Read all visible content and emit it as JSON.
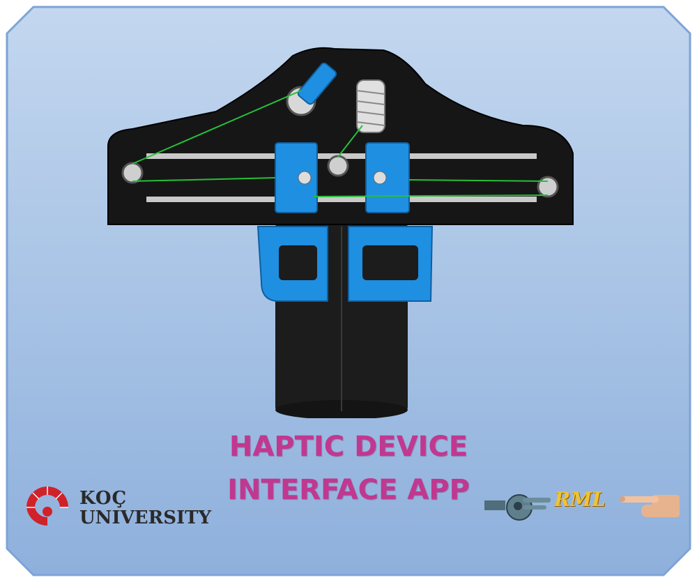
{
  "splash": {
    "title_line_1": "HAPTIC DEVICE",
    "title_line_2": "INTERFACE APP"
  },
  "logos": {
    "left": {
      "name_line_1": "KOÇ",
      "name_line_2": "UNIVERSITY",
      "icon": "spiral-emblem-icon"
    },
    "right": {
      "text": "RML",
      "icon": "robot-hand-pointing-icon"
    }
  },
  "colors": {
    "background_top": "#bcd3ee",
    "background_bottom": "#8fb1dc",
    "frame_border": "#7a9fd3",
    "title": "#c0388f",
    "device_body": "#1b1b1b",
    "device_accent": "#1e90e0",
    "koc_red": "#d0222b",
    "rml_gold": "#f1c232"
  }
}
